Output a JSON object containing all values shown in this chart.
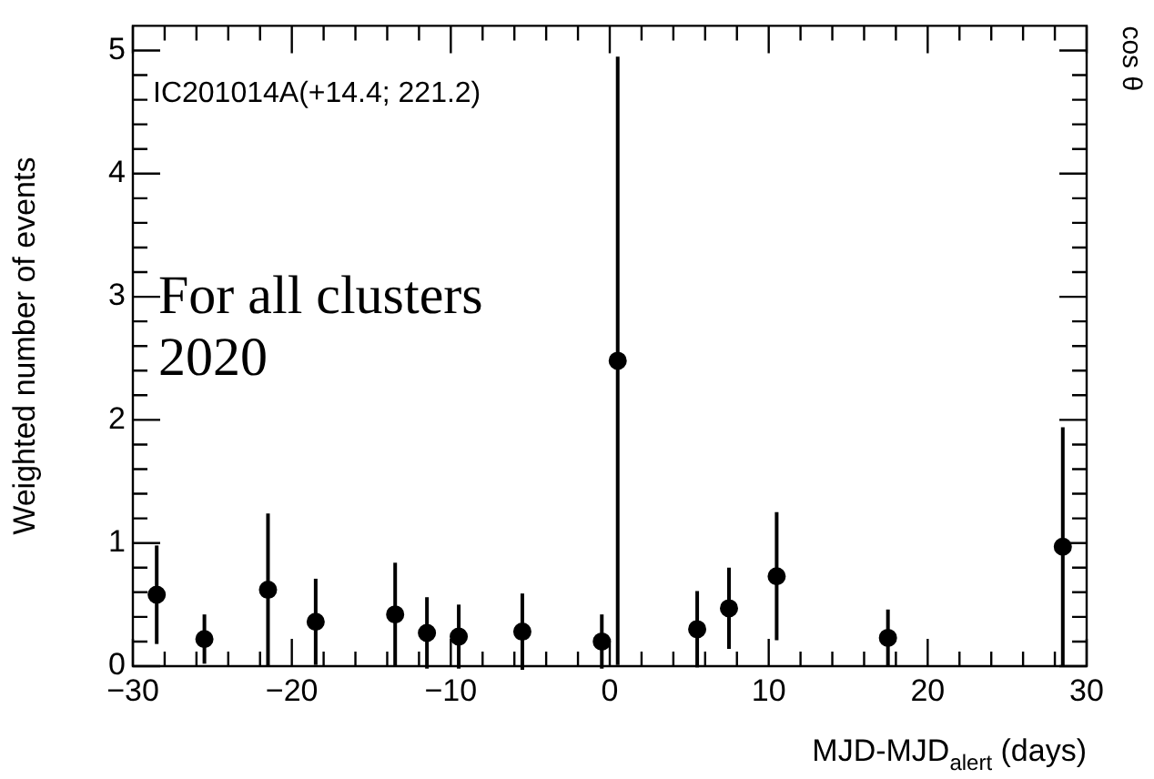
{
  "chart_data": {
    "type": "scatter",
    "xlabel": "MJD-MJD$_{alert}$ (days)",
    "ylabel": "Weighted number of events",
    "y2label": "cos θ",
    "annotations": [
      "IC201014A(+14.4; 221.2)",
      "For all clusters",
      "2020"
    ],
    "x": [
      -28.5,
      -25.5,
      -21.5,
      -18.5,
      -13.5,
      -11.5,
      -9.5,
      -5.5,
      -0.5,
      0.5,
      5.5,
      7.5,
      10.5,
      17.5,
      28.5
    ],
    "series": [
      {
        "color": "#000000",
        "values": [
          0.58,
          0.22,
          0.62,
          0.36,
          0.42,
          0.27,
          0.24,
          0.28,
          0.2,
          2.48,
          0.3,
          0.47,
          0.73,
          0.23,
          0.97
        ],
        "errors": [
          0.4,
          0.2,
          0.62,
          0.35,
          0.42,
          0.29,
          0.26,
          0.31,
          0.22,
          2.47,
          0.31,
          0.33,
          0.52,
          0.23,
          0.97
        ]
      }
    ],
    "marker": "circle",
    "xlim": [
      -30,
      30
    ],
    "ylim": [
      0,
      5.2
    ],
    "xticks": [
      -30,
      -20,
      -10,
      0,
      10,
      20,
      30
    ],
    "yticks": [
      0,
      1,
      2,
      3,
      4,
      5
    ],
    "legend": false
  }
}
